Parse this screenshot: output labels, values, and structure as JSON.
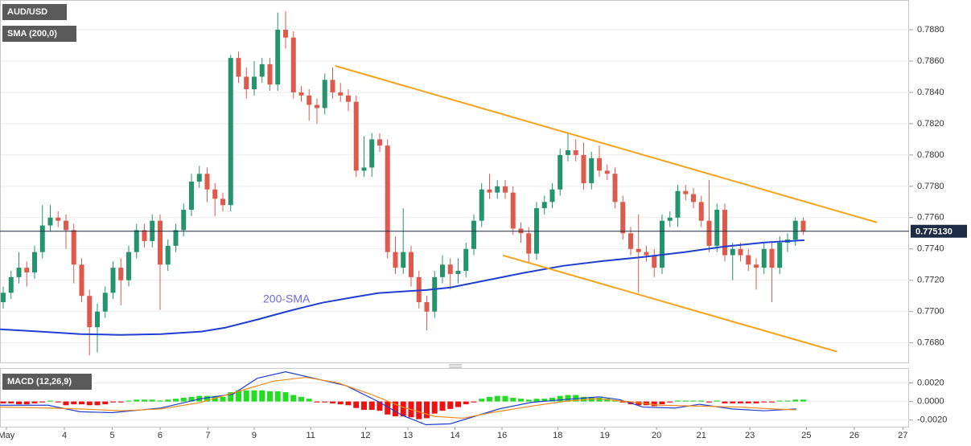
{
  "chart_data": [
    {
      "type": "candlestick",
      "title": "AUD/USD",
      "up_color": "#25936e",
      "down_color": "#de5a4c",
      "values": [
        [
          0.7706,
          0.7716,
          0.7702,
          0.7712
        ],
        [
          0.7712,
          0.7726,
          0.7708,
          0.7722
        ],
        [
          0.7722,
          0.7738,
          0.7718,
          0.7728
        ],
        [
          0.7728,
          0.7732,
          0.7716,
          0.7725
        ],
        [
          0.7725,
          0.7742,
          0.7721,
          0.7738
        ],
        [
          0.7738,
          0.7768,
          0.7734,
          0.7755
        ],
        [
          0.7755,
          0.7768,
          0.7751,
          0.776
        ],
        [
          0.776,
          0.7764,
          0.7754,
          0.7758
        ],
        [
          0.7758,
          0.7762,
          0.774,
          0.7752
        ],
        [
          0.7752,
          0.7756,
          0.7718,
          0.773
        ],
        [
          0.773,
          0.7734,
          0.7706,
          0.771
        ],
        [
          0.771,
          0.7714,
          0.7672,
          0.769
        ],
        [
          0.769,
          0.7705,
          0.7674,
          0.77
        ],
        [
          0.77,
          0.7716,
          0.7696,
          0.7712
        ],
        [
          0.7712,
          0.7732,
          0.7708,
          0.7728
        ],
        [
          0.7728,
          0.7734,
          0.7704,
          0.772
        ],
        [
          0.772,
          0.7742,
          0.7716,
          0.7738
        ],
        [
          0.7738,
          0.7756,
          0.7734,
          0.7752
        ],
        [
          0.7752,
          0.7756,
          0.7741,
          0.7745
        ],
        [
          0.7745,
          0.7762,
          0.7741,
          0.7758
        ],
        [
          0.7758,
          0.7762,
          0.7701,
          0.773
        ],
        [
          0.773,
          0.7746,
          0.7726,
          0.7742
        ],
        [
          0.7742,
          0.7756,
          0.7738,
          0.7752
        ],
        [
          0.7752,
          0.7769,
          0.7748,
          0.7765
        ],
        [
          0.7765,
          0.7788,
          0.7761,
          0.7783
        ],
        [
          0.7783,
          0.7793,
          0.7779,
          0.7788
        ],
        [
          0.7788,
          0.7792,
          0.777,
          0.7778
        ],
        [
          0.7778,
          0.7782,
          0.7761,
          0.7772
        ],
        [
          0.7772,
          0.7776,
          0.7764,
          0.7768
        ],
        [
          0.7768,
          0.7864,
          0.7764,
          0.7862
        ],
        [
          0.7862,
          0.7866,
          0.7846,
          0.785
        ],
        [
          0.785,
          0.7856,
          0.7836,
          0.7842
        ],
        [
          0.7842,
          0.786,
          0.7838,
          0.785
        ],
        [
          0.785,
          0.7862,
          0.7846,
          0.7858
        ],
        [
          0.7858,
          0.7862,
          0.7841,
          0.7845
        ],
        [
          0.7845,
          0.7891,
          0.7841,
          0.788
        ],
        [
          0.788,
          0.7892,
          0.7868,
          0.7875
        ],
        [
          0.7875,
          0.7879,
          0.7836,
          0.784
        ],
        [
          0.784,
          0.7844,
          0.7834,
          0.7838
        ],
        [
          0.7838,
          0.7842,
          0.7822,
          0.7832
        ],
        [
          0.7832,
          0.7836,
          0.782,
          0.783
        ],
        [
          0.783,
          0.7852,
          0.7826,
          0.7848
        ],
        [
          0.7848,
          0.7856,
          0.7836,
          0.784
        ],
        [
          0.784,
          0.7846,
          0.7834,
          0.7838
        ],
        [
          0.7838,
          0.7842,
          0.7828,
          0.7834
        ],
        [
          0.7834,
          0.7838,
          0.7786,
          0.779
        ],
        [
          0.779,
          0.7812,
          0.7786,
          0.7792
        ],
        [
          0.7792,
          0.7814,
          0.7786,
          0.781
        ],
        [
          0.781,
          0.7814,
          0.7802,
          0.7806
        ],
        [
          0.7806,
          0.781,
          0.7734,
          0.7738
        ],
        [
          0.7738,
          0.7748,
          0.7724,
          0.7728
        ],
        [
          0.7728,
          0.7766,
          0.7724,
          0.7738
        ],
        [
          0.7738,
          0.7742,
          0.7716,
          0.7722
        ],
        [
          0.7722,
          0.7726,
          0.7702,
          0.7706
        ],
        [
          0.7706,
          0.771,
          0.7688,
          0.77
        ],
        [
          0.77,
          0.7726,
          0.7696,
          0.7722
        ],
        [
          0.7722,
          0.7736,
          0.7718,
          0.773
        ],
        [
          0.773,
          0.7734,
          0.7714,
          0.7724
        ],
        [
          0.7724,
          0.7734,
          0.7718,
          0.7726
        ],
        [
          0.7726,
          0.7744,
          0.7722,
          0.774
        ],
        [
          0.774,
          0.7762,
          0.7736,
          0.7758
        ],
        [
          0.7758,
          0.7782,
          0.7754,
          0.7778
        ],
        [
          0.7778,
          0.7788,
          0.7772,
          0.7776
        ],
        [
          0.7776,
          0.7784,
          0.7772,
          0.778
        ],
        [
          0.778,
          0.7784,
          0.7772,
          0.7776
        ],
        [
          0.7776,
          0.778,
          0.7749,
          0.7753
        ],
        [
          0.7753,
          0.7757,
          0.7744,
          0.775
        ],
        [
          0.775,
          0.7754,
          0.7731,
          0.7737
        ],
        [
          0.7737,
          0.777,
          0.7733,
          0.7766
        ],
        [
          0.7766,
          0.7774,
          0.7762,
          0.777
        ],
        [
          0.777,
          0.7782,
          0.7766,
          0.7778
        ],
        [
          0.7778,
          0.7804,
          0.7774,
          0.78
        ],
        [
          0.78,
          0.7814,
          0.7796,
          0.7803
        ],
        [
          0.7803,
          0.781,
          0.7796,
          0.78
        ],
        [
          0.78,
          0.7808,
          0.7778,
          0.7782
        ],
        [
          0.7782,
          0.7802,
          0.7778,
          0.7798
        ],
        [
          0.7798,
          0.7806,
          0.7786,
          0.779
        ],
        [
          0.779,
          0.7794,
          0.7784,
          0.7788
        ],
        [
          0.7788,
          0.7792,
          0.7766,
          0.777
        ],
        [
          0.777,
          0.7774,
          0.7746,
          0.775
        ],
        [
          0.775,
          0.7754,
          0.7736,
          0.774
        ],
        [
          0.774,
          0.7762,
          0.7712,
          0.7738
        ],
        [
          0.7738,
          0.7742,
          0.7732,
          0.7736
        ],
        [
          0.7736,
          0.774,
          0.7722,
          0.7728
        ],
        [
          0.7728,
          0.7762,
          0.7724,
          0.7758
        ],
        [
          0.7758,
          0.7764,
          0.7754,
          0.776
        ],
        [
          0.776,
          0.7781,
          0.7754,
          0.7777
        ],
        [
          0.7777,
          0.7781,
          0.7771,
          0.7775
        ],
        [
          0.7775,
          0.7779,
          0.7766,
          0.777
        ],
        [
          0.777,
          0.7774,
          0.7754,
          0.7758
        ],
        [
          0.7758,
          0.7784,
          0.7738,
          0.7742
        ],
        [
          0.7742,
          0.7769,
          0.7738,
          0.7765
        ],
        [
          0.7765,
          0.7769,
          0.7732,
          0.7736
        ],
        [
          0.7736,
          0.7744,
          0.772,
          0.774
        ],
        [
          0.774,
          0.7744,
          0.7732,
          0.7736
        ],
        [
          0.7736,
          0.774,
          0.7726,
          0.773
        ],
        [
          0.773,
          0.7734,
          0.7714,
          0.7728
        ],
        [
          0.7728,
          0.7744,
          0.7724,
          0.774
        ],
        [
          0.774,
          0.7744,
          0.7706,
          0.7728
        ],
        [
          0.7728,
          0.7748,
          0.7724,
          0.7744
        ],
        [
          0.7744,
          0.775,
          0.7738,
          0.7746
        ],
        [
          0.7746,
          0.776,
          0.7742,
          0.7758
        ],
        [
          0.7758,
          0.776,
          0.7749,
          0.7751
        ]
      ],
      "sma": {
        "name": "SMA (200,0)",
        "color": "#1f3fd1",
        "x": [
          -0.4,
          4.72,
          9.85,
          14.97,
          20.1,
          25.23,
          28.31,
          32.41,
          36.51,
          40.62,
          44.72,
          47.79,
          50.87,
          53.95,
          57.03,
          61.13,
          66.26,
          71.38,
          76.51,
          81.64,
          86.77,
          91.9,
          97.03,
          102.15
        ],
        "values": [
          0.76887,
          0.76872,
          0.76856,
          0.76851,
          0.76856,
          0.76872,
          0.76897,
          0.76949,
          0.77005,
          0.77056,
          0.77092,
          0.77118,
          0.77128,
          0.77138,
          0.77154,
          0.77195,
          0.77246,
          0.77292,
          0.77323,
          0.77349,
          0.77379,
          0.77415,
          0.77441,
          0.77456
        ]
      },
      "annotation": "200-SMA",
      "annotation_color": "#6b6bd6",
      "trend_color": "#f7a21b",
      "trendlines": [
        {
          "x": [
            42.36,
            111.4
          ],
          "values": [
            0.78569,
            0.77569
          ]
        },
        {
          "x": [
            63.7,
            106.3
          ],
          "values": [
            0.77359,
            0.76744
          ]
        }
      ],
      "last_price": {
        "value": 0.77513,
        "label": "0.775130"
      },
      "last_color": "#1e2b45",
      "ylim": [
        0.7667,
        0.7899
      ],
      "yticks": [
        {
          "value": 0.768,
          "label": "0.7680"
        },
        {
          "value": 0.77,
          "label": "0.7700"
        },
        {
          "value": 0.772,
          "label": "0.7720"
        },
        {
          "value": 0.774,
          "label": "0.7740"
        },
        {
          "value": 0.776,
          "label": "0.7760"
        },
        {
          "value": 0.778,
          "label": "0.7780"
        },
        {
          "value": 0.78,
          "label": "0.7800"
        },
        {
          "value": 0.782,
          "label": "0.7820"
        },
        {
          "value": 0.784,
          "label": "0.7840"
        },
        {
          "value": 0.786,
          "label": "0.7860"
        },
        {
          "value": 0.788,
          "label": "0.7880"
        }
      ],
      "xlim": [
        -0.41,
        115.49
      ],
      "xticks": [
        {
          "value": 0.4,
          "label": "May"
        },
        {
          "value": 7.8,
          "label": "4"
        },
        {
          "value": 13.9,
          "label": "5"
        },
        {
          "value": 20,
          "label": "6"
        },
        {
          "value": 26.1,
          "label": "7"
        },
        {
          "value": 32,
          "label": "9"
        },
        {
          "value": 39.2,
          "label": "11"
        },
        {
          "value": 46.2,
          "label": "12"
        },
        {
          "value": 51.6,
          "label": "13"
        },
        {
          "value": 57.6,
          "label": "14"
        },
        {
          "value": 63.6,
          "label": "16"
        },
        {
          "value": 70.7,
          "label": "18"
        },
        {
          "value": 76.7,
          "label": "19"
        },
        {
          "value": 83.3,
          "label": "20"
        },
        {
          "value": 89,
          "label": "21"
        },
        {
          "value": 95.2,
          "label": "23"
        },
        {
          "value": 102.4,
          "label": "25"
        },
        {
          "value": 108.5,
          "label": "26"
        },
        {
          "value": 114.7,
          "label": "27"
        }
      ],
      "grid": true
    },
    {
      "type": "macd",
      "title": "MACD (12,26,9)",
      "up_color": "#22dd22",
      "down_color": "#ee1111",
      "values": [
        -0.0002,
        -0.0002,
        -0.0003,
        -0.0003,
        -0.0002,
        -0.0001,
        0.0001,
        -0.0001,
        -0.0004,
        -0.0003,
        -0.0003,
        -0.0004,
        -0.0004,
        -0.0003,
        -0.0001,
        -0.0001,
        0.0001,
        0.0002,
        0.0002,
        0.0002,
        0.0001,
        0.0002,
        0.0003,
        0.0004,
        0.0005,
        0.0006,
        0.0006,
        0.0006,
        0.0005,
        0.001,
        0.0012,
        0.0012,
        0.0012,
        0.0012,
        0.0011,
        0.0011,
        0.001,
        0.0007,
        0.0005,
        0.0003,
        -0.0001,
        -0.0001,
        -0.0002,
        -0.0003,
        -0.0004,
        -0.0007,
        -0.0009,
        -0.0009,
        -0.001,
        -0.0014,
        -0.0016,
        -0.0016,
        -0.0017,
        -0.0019,
        -0.0018,
        -0.0013,
        -0.001,
        -0.0008,
        -0.0006,
        -0.0003,
        -0.0001,
        0.0003,
        0.0005,
        0.0006,
        0.0006,
        0.0004,
        0.0003,
        0.0002,
        0.0003,
        0.0003,
        0.0004,
        0.0006,
        0.0007,
        0.0007,
        0.0005,
        0.0005,
        0.0004,
        0.0003,
        0.0001,
        -0.0001,
        -0.0003,
        -0.0004,
        -0.0004,
        -0.0005,
        -0.0003,
        -0.0001,
        0.0001,
        0.0001,
        0.0001,
        0.0001,
        -0.0001,
        0.0001,
        -0.0002,
        -0.0002,
        -0.0002,
        -0.0002,
        -0.0002,
        -0.0001,
        -0.0001,
        0.0001,
        0.0001,
        0.0002,
        0.0002
      ],
      "lines": [
        {
          "color": "#1f3fd1",
          "x": [
            -0.4,
            5.7,
            9.8,
            13.9,
            20.1,
            25.2,
            29.3,
            32.4,
            36,
            39.6,
            43.7,
            47.8,
            50.9,
            53.9,
            57,
            60.1,
            63.2,
            67.3,
            71.4,
            76,
            78.6,
            81.6,
            85.7,
            88.8,
            92.9,
            97,
            101.1
          ],
          "values": [
            -0.0004,
            -0.0004,
            -0.0011,
            -0.0012,
            -0.0007,
            0.0003,
            0.0008,
            0.0025,
            0.0032,
            0.0025,
            0.0017,
            0,
            -0.0015,
            -0.0025,
            -0.0024,
            -0.0016,
            -0.0008,
            -0.0001,
            0.0002,
            0.0005,
            0.0002,
            -0.0006,
            -0.0007,
            -0.0003,
            -0.0008,
            -0.001,
            -0.0008
          ]
        },
        {
          "color": "#f08a1c",
          "x": [
            -0.4,
            5.7,
            9.8,
            15,
            20.1,
            25.2,
            30.4,
            34.5,
            38.6,
            42.7,
            46.8,
            50.9,
            55,
            58.6,
            62.2,
            67.3,
            71.4,
            75.5,
            79.6,
            83.7,
            88.8,
            93.9,
            98.1,
            101.1
          ],
          "values": [
            -0.0006,
            -0.0007,
            -0.0008,
            -0.001,
            -0.0008,
            -0.0001,
            0.0012,
            0.0022,
            0.0026,
            0.002,
            0.0008,
            -0.0006,
            -0.0016,
            -0.0018,
            -0.0012,
            -0.0005,
            0,
            0.0003,
            0,
            -0.0004,
            -0.0005,
            -0.0006,
            -0.0008,
            -0.0009
          ]
        }
      ],
      "ylim": [
        -0.0028,
        0.0036
      ],
      "yticks": [
        {
          "value": -0.002,
          "label": "-0.0020"
        },
        {
          "value": 0,
          "label": "0.0000"
        },
        {
          "value": 0.002,
          "label": "0.0020"
        }
      ],
      "grid": true
    }
  ]
}
